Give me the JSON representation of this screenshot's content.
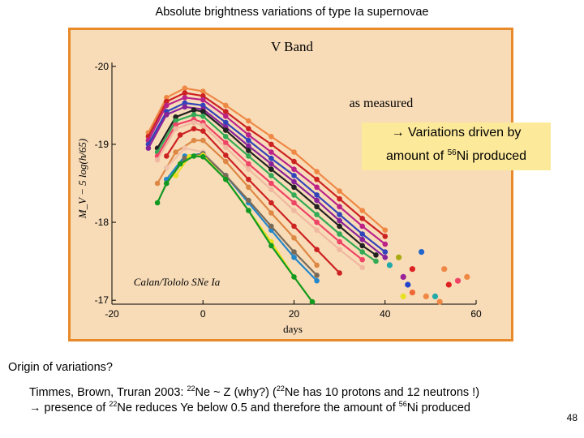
{
  "slide": {
    "title": "Absolute brightness variations of type Ia supernovae",
    "page_number": "48"
  },
  "callout": {
    "line1": "→ Variations driven by",
    "line2_prefix": "amount of ",
    "line2_sup": "56",
    "line2_suffix": "Ni produced"
  },
  "notes": {
    "origin": "Origin of variations?",
    "line1": [
      {
        "t": "Timmes, Brown, Truran 2003: "
      },
      {
        "t": "22",
        "sup": true
      },
      {
        "t": "Ne ~ Z    (why?)  ("
      },
      {
        "t": "22",
        "sup": true
      },
      {
        "t": "Ne has 10 protons and 12 neutrons !)"
      }
    ],
    "line2": [
      {
        "t": "→ presence of "
      },
      {
        "t": "22",
        "sup": true
      },
      {
        "t": "Ne reduces Ye below 0.5 and therefore the amount of "
      },
      {
        "t": "56",
        "sup": true
      },
      {
        "t": "Ni produced"
      }
    ]
  },
  "chart_data": {
    "type": "line",
    "title": "V Band",
    "subtitle": "as measured",
    "annotation": "Calan/Tololo SNe Ia",
    "xlabel": "days",
    "ylabel": "M_V − 5 log(h/65)",
    "xlim": [
      -20,
      60
    ],
    "ylim": [
      -16.95,
      -20.05
    ],
    "y_inverted": true,
    "xticks": [
      -20,
      0,
      20,
      40,
      60
    ],
    "yticks": [
      -20,
      -19,
      -18,
      -17
    ],
    "grid": false,
    "colors": {
      "background": "#f8dcb8",
      "frame": "#e8892a",
      "callout": "#fde99a"
    },
    "series": [
      {
        "color": "#ee8844",
        "x": [
          -12,
          -8,
          -4,
          0,
          5,
          10,
          15,
          20,
          25,
          30,
          35,
          40
        ],
        "y": [
          -19.15,
          -19.6,
          -19.72,
          -19.68,
          -19.5,
          -19.3,
          -19.1,
          -18.9,
          -18.65,
          -18.4,
          -18.15,
          -17.9
        ]
      },
      {
        "color": "#cc2222",
        "x": [
          -12,
          -8,
          -4,
          0,
          5,
          10,
          15,
          20,
          25,
          30,
          35,
          40
        ],
        "y": [
          -19.1,
          -19.55,
          -19.66,
          -19.62,
          -19.42,
          -19.2,
          -19.0,
          -18.78,
          -18.55,
          -18.3,
          -18.05,
          -17.82
        ]
      },
      {
        "color": "#bb2288",
        "x": [
          -12,
          -8,
          -4,
          0,
          5,
          10,
          15,
          20,
          25,
          30,
          35,
          40
        ],
        "y": [
          -19.05,
          -19.5,
          -19.6,
          -19.57,
          -19.36,
          -19.12,
          -18.9,
          -18.68,
          -18.45,
          -18.2,
          -17.95,
          -17.72
        ]
      },
      {
        "color": "#3344bb",
        "x": [
          -12,
          -8,
          -4,
          0,
          5,
          10,
          15,
          20,
          25,
          30,
          35,
          40
        ],
        "y": [
          -19.0,
          -19.42,
          -19.53,
          -19.5,
          -19.28,
          -19.05,
          -18.82,
          -18.6,
          -18.35,
          -18.1,
          -17.85,
          -17.62
        ]
      },
      {
        "color": "#882299",
        "x": [
          -12,
          -8,
          -4,
          0,
          5,
          10,
          15,
          20,
          25,
          30,
          35,
          40
        ],
        "y": [
          -18.95,
          -19.38,
          -19.48,
          -19.45,
          -19.22,
          -18.98,
          -18.75,
          -18.52,
          -18.28,
          -18.02,
          -17.78,
          -17.55
        ]
      },
      {
        "color": "#222222",
        "x": [
          -10,
          -6,
          -2,
          0,
          5,
          10,
          15,
          20,
          25,
          30,
          35,
          38
        ],
        "y": [
          -18.95,
          -19.35,
          -19.44,
          -19.42,
          -19.18,
          -18.92,
          -18.68,
          -18.45,
          -18.2,
          -17.95,
          -17.7,
          -17.58
        ]
      },
      {
        "color": "#33aa55",
        "x": [
          -10,
          -6,
          -2,
          0,
          5,
          10,
          15,
          20,
          25,
          30,
          35,
          38
        ],
        "y": [
          -18.9,
          -19.3,
          -19.38,
          -19.36,
          -19.1,
          -18.85,
          -18.6,
          -18.35,
          -18.1,
          -17.85,
          -17.62,
          -17.5
        ]
      },
      {
        "color": "#ee4466",
        "x": [
          -10,
          -6,
          -2,
          0,
          5,
          10,
          15,
          20,
          25,
          30,
          35
        ],
        "y": [
          -18.85,
          -19.25,
          -19.32,
          -19.28,
          -19.02,
          -18.75,
          -18.5,
          -18.25,
          -18.0,
          -17.75,
          -17.52
        ]
      },
      {
        "color": "#f0b8a0",
        "x": [
          -10,
          -6,
          -2,
          0,
          5,
          10,
          15,
          20,
          25,
          30,
          35
        ],
        "y": [
          -18.8,
          -19.2,
          -19.28,
          -19.24,
          -18.96,
          -18.68,
          -18.42,
          -18.15,
          -17.9,
          -17.65,
          -17.42
        ]
      },
      {
        "color": "#cc2222",
        "x": [
          -8,
          -5,
          -2,
          0,
          5,
          10,
          15,
          20,
          25,
          30
        ],
        "y": [
          -18.85,
          -19.12,
          -19.2,
          -19.17,
          -18.86,
          -18.55,
          -18.25,
          -17.95,
          -17.65,
          -17.35
        ]
      },
      {
        "color": "#dd8844",
        "x": [
          -10,
          -6,
          -2,
          0,
          5,
          10,
          15,
          20,
          25
        ],
        "y": [
          -18.5,
          -18.9,
          -19.05,
          -19.05,
          -18.78,
          -18.45,
          -18.12,
          -17.8,
          -17.45
        ]
      },
      {
        "color": "#f0c0a8",
        "x": [
          -8,
          -4,
          0,
          5,
          10,
          15,
          20,
          25
        ],
        "y": [
          -18.7,
          -18.95,
          -18.9,
          -18.6,
          -18.25,
          -17.9,
          -17.55,
          -17.25
        ]
      },
      {
        "color": "#2288cc",
        "x": [
          -8,
          -4,
          0,
          5,
          10,
          15,
          20,
          25
        ],
        "y": [
          -18.55,
          -18.85,
          -18.88,
          -18.6,
          -18.25,
          -17.9,
          -17.55,
          -17.25
        ]
      },
      {
        "color": "#7a6a58",
        "x": [
          -8,
          -4,
          0,
          5,
          10,
          15,
          20,
          25
        ],
        "y": [
          -18.5,
          -18.82,
          -18.88,
          -18.6,
          -18.28,
          -17.95,
          -17.62,
          -17.32
        ]
      },
      {
        "color": "#e8e020",
        "x": [
          -6,
          -3,
          0,
          5,
          10,
          15,
          20,
          24
        ],
        "y": [
          -18.6,
          -18.84,
          -18.86,
          -18.55,
          -18.15,
          -17.75,
          -17.3,
          -16.98
        ]
      },
      {
        "color": "#119922",
        "x": [
          -10,
          -8,
          -5,
          -2,
          0,
          5,
          10,
          15,
          20,
          24
        ],
        "y": [
          -18.25,
          -18.5,
          -18.75,
          -18.85,
          -18.84,
          -18.55,
          -18.15,
          -17.7,
          -17.3,
          -16.98
        ]
      }
    ],
    "extra_points": [
      {
        "color": "#22aaaa",
        "x": 41,
        "y": -17.45
      },
      {
        "color": "#aaaa11",
        "x": 43,
        "y": -17.55
      },
      {
        "color": "#ee6633",
        "x": 46,
        "y": -17.1
      },
      {
        "color": "#dd2222",
        "x": 46,
        "y": -17.4
      },
      {
        "color": "#2266cc",
        "x": 48,
        "y": -17.62
      },
      {
        "color": "#992299",
        "x": 44,
        "y": -17.3
      },
      {
        "color": "#ee8844",
        "x": 53,
        "y": -17.4
      },
      {
        "color": "#ee8844",
        "x": 52,
        "y": -16.98
      },
      {
        "color": "#22aaaa",
        "x": 51,
        "y": -17.05
      },
      {
        "color": "#ee4466",
        "x": 56,
        "y": -17.25
      },
      {
        "color": "#dd2222",
        "x": 54,
        "y": -17.2
      },
      {
        "color": "#2244cc",
        "x": 45,
        "y": -17.2
      },
      {
        "color": "#ee8844",
        "x": 58,
        "y": -17.3
      },
      {
        "color": "#e8e020",
        "x": 44,
        "y": -17.05
      },
      {
        "color": "#ee8844",
        "x": 49,
        "y": -17.05
      }
    ]
  }
}
